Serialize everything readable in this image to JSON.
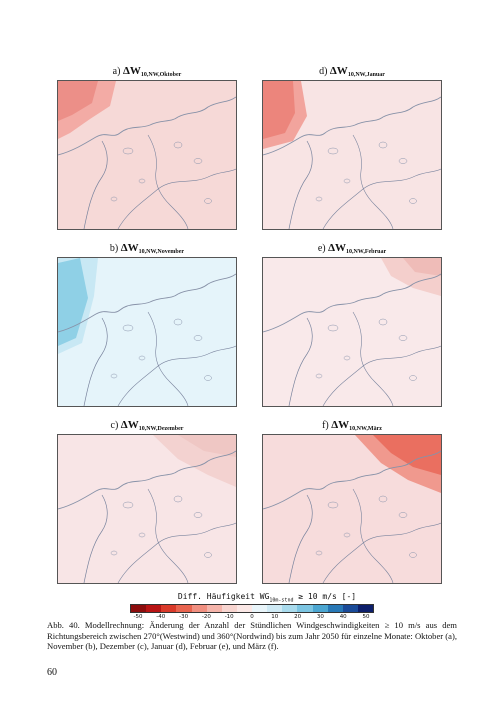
{
  "panels": [
    {
      "label": "a)",
      "symbol": "ΔW",
      "subscript": "10,NW,Oktober",
      "fill": "#f6d9d7",
      "hot": "#f3aba5",
      "hot2": "#ec8f88"
    },
    {
      "label": "d)",
      "symbol": "ΔW",
      "subscript": "10,NW,Januar",
      "fill": "#f8e4e4",
      "hot": "#f2a49d",
      "hot2": "#ec857c"
    },
    {
      "label": "b)",
      "symbol": "ΔW",
      "subscript": "10,NW,November",
      "fill": "#e5f4fa",
      "hot": "#c8e8f4",
      "hot2": "#8fd0e6"
    },
    {
      "label": "e)",
      "symbol": "ΔW",
      "subscript": "10,NW,Februar",
      "fill": "#f9e9ea",
      "hot": "#f4cfcc",
      "hot2": "#efbcb8"
    },
    {
      "label": "c)",
      "symbol": "ΔW",
      "subscript": "10,NW,Dezember",
      "fill": "#f8e5e6",
      "hot": "#f3d2d0",
      "hot2": "#efc7c4"
    },
    {
      "label": "f)",
      "symbol": "ΔW",
      "subscript": "10,NW,März",
      "fill": "#f7dcdc",
      "hot": "#f0998e",
      "hot2": "#ea6f60"
    }
  ],
  "legend": {
    "title_prefix": "Diff. Häufigkeit WG",
    "title_sub": "10m-stnd",
    "title_suffix": " ≥ 10 m/s [-]",
    "colors": [
      "#8c0d0d",
      "#b81414",
      "#d93a2a",
      "#e8644f",
      "#f08f80",
      "#f5b4aa",
      "#f8d5d0",
      "#fbe8e6",
      "#e9f5fa",
      "#cfeaf5",
      "#a9dbed",
      "#7cc5e2",
      "#4ca6d1",
      "#2878b6",
      "#1a4a98",
      "#0d1f6b"
    ],
    "ticks": [
      "-50",
      "-40",
      "-30",
      "-20",
      "-10",
      "0",
      "10",
      "20",
      "30",
      "40",
      "50"
    ]
  },
  "caption": "Abb. 40. Modellrechnung: Änderung der Anzahl der Stündlichen Windgeschwindigkeiten ≥ 10 m/s aus dem Richtungsbereich zwischen 270°(Westwind) und 360°(Nordwind) bis zum Jahr 2050 für einzelne Monate: Oktober (a), November (b), Dezember (c), Januar (d), Februar (e), und März (f).",
  "page_number": "60"
}
